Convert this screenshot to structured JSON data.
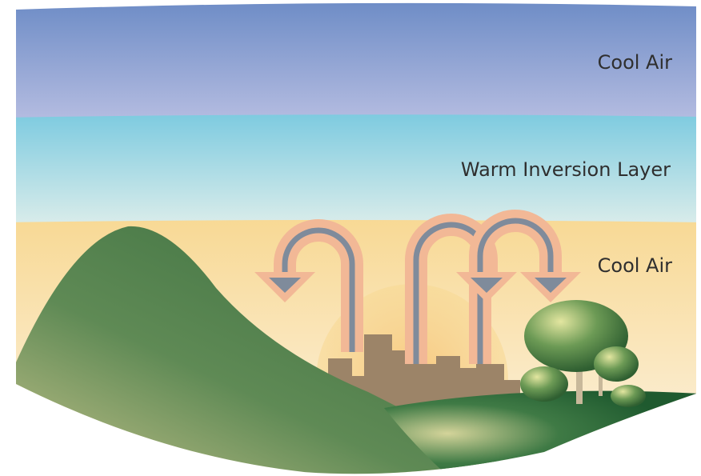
{
  "layers": [
    {
      "label": "Cool Air"
    },
    {
      "label": "Warm Inversion Layer"
    },
    {
      "label": "Cool Air"
    }
  ]
}
